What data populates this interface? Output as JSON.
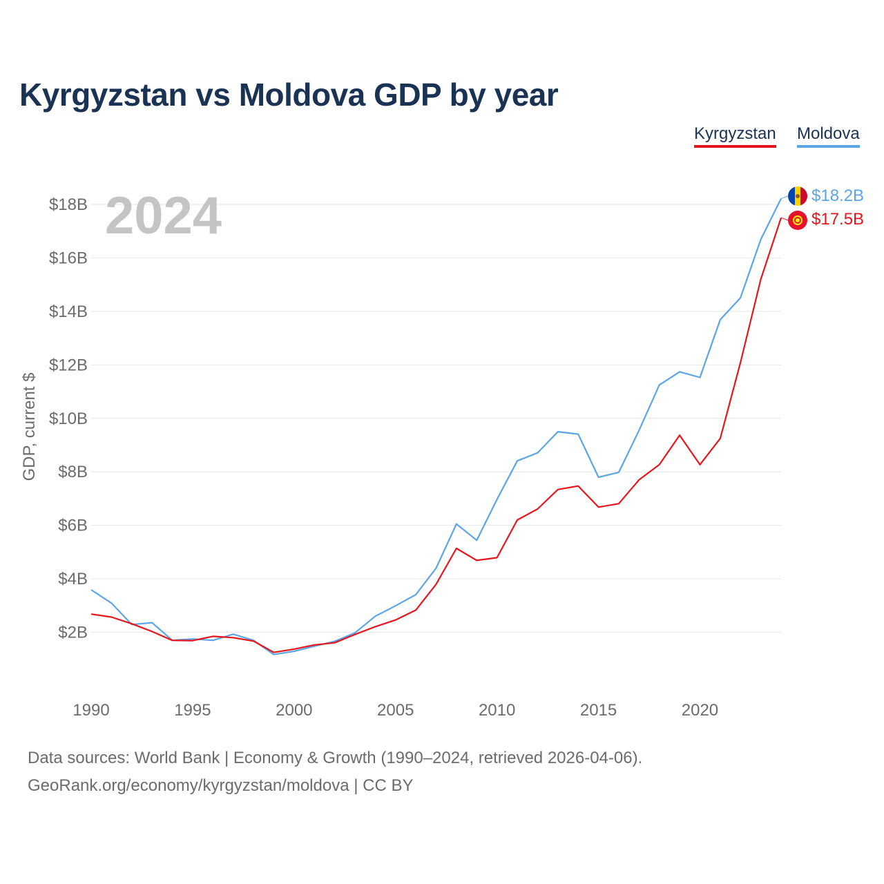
{
  "title": "Kyrgyzstan vs Moldova GDP by year",
  "legend": [
    "Kyrgyzstan",
    "Moldova"
  ],
  "year_watermark": "2024",
  "footer": {
    "line1": "Data sources: World Bank | Economy & Growth (1990–2024, retrieved 2026-04-06).",
    "line2": "GeoRank.org/economy/kyrgyzstan/moldova | CC BY"
  },
  "colors": {
    "Kyrgyzstan": "#e8141c",
    "Moldova": "#5ba4e6",
    "grid": "#e6e6e6",
    "axis_text": "#6b6b6b"
  },
  "chart_data": {
    "type": "line",
    "title": "Kyrgyzstan vs Moldova GDP by year",
    "xlabel": "",
    "ylabel": "GDP, current $",
    "xlim": [
      1990,
      2024
    ],
    "ylim": [
      0,
      18.8
    ],
    "x_ticks": [
      1990,
      1995,
      2000,
      2005,
      2010,
      2015,
      2020
    ],
    "y_ticks": [
      2,
      4,
      6,
      8,
      10,
      12,
      14,
      16,
      18
    ],
    "y_tick_labels": [
      "$2B",
      "$4B",
      "$6B",
      "$8B",
      "$10B",
      "$12B",
      "$14B",
      "$16B",
      "$18B"
    ],
    "x": [
      1990,
      1991,
      1992,
      1993,
      1994,
      1995,
      1996,
      1997,
      1998,
      1999,
      2000,
      2001,
      2002,
      2003,
      2004,
      2005,
      2006,
      2007,
      2008,
      2009,
      2010,
      2011,
      2012,
      2013,
      2014,
      2015,
      2016,
      2017,
      2018,
      2019,
      2020,
      2021,
      2022,
      2023,
      2024
    ],
    "series": [
      {
        "name": "Kyrgyzstan",
        "end_label": "$17.5B",
        "values": [
          2.68,
          2.57,
          2.32,
          2.03,
          1.7,
          1.69,
          1.85,
          1.8,
          1.67,
          1.25,
          1.37,
          1.53,
          1.61,
          1.92,
          2.21,
          2.46,
          2.83,
          3.8,
          5.14,
          4.69,
          4.79,
          6.2,
          6.61,
          7.34,
          7.47,
          6.68,
          6.81,
          7.7,
          8.27,
          9.37,
          8.27,
          9.25,
          12.09,
          15.2,
          17.5
        ]
      },
      {
        "name": "Moldova",
        "end_label": "$18.2B",
        "values": [
          3.59,
          3.09,
          2.29,
          2.36,
          1.7,
          1.75,
          1.7,
          1.93,
          1.7,
          1.17,
          1.29,
          1.48,
          1.66,
          1.98,
          2.6,
          2.99,
          3.41,
          4.4,
          6.05,
          5.44,
          6.97,
          8.41,
          8.71,
          9.5,
          9.41,
          7.8,
          7.98,
          9.55,
          11.25,
          11.74,
          11.53,
          13.69,
          14.51,
          16.69,
          18.22
        ]
      }
    ]
  }
}
